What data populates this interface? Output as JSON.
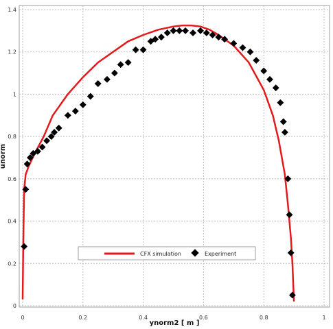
{
  "chart_data": {
    "type": "scatter",
    "xlabel": "ynorm2 [ m ]",
    "ylabel": "unorm",
    "xlim": [
      0,
      1
    ],
    "ylim": [
      0,
      1.4
    ],
    "x_ticks": [
      "0",
      "0.2",
      "0.4",
      "0.6",
      "0.8",
      "1"
    ],
    "y_ticks": [
      "0",
      "0.2",
      "0.4",
      "0.6",
      "0.8",
      "1",
      "1.2",
      "1.4"
    ],
    "grid": true,
    "legend_position": "bottom-center",
    "colors": {
      "simulation": "#e31a1c",
      "experiment": "#000000",
      "grid": "#bdbdbd"
    },
    "series": [
      {
        "name": "CFX simulation",
        "kind": "line",
        "x": [
          0.0,
          0.002,
          0.005,
          0.01,
          0.02,
          0.04,
          0.07,
          0.1,
          0.15,
          0.2,
          0.25,
          0.3,
          0.35,
          0.4,
          0.45,
          0.5,
          0.53,
          0.56,
          0.59,
          0.62,
          0.65,
          0.7,
          0.75,
          0.8,
          0.83,
          0.85,
          0.87,
          0.88,
          0.89,
          0.895,
          0.9
        ],
        "y": [
          0.03,
          0.3,
          0.55,
          0.62,
          0.66,
          0.72,
          0.8,
          0.9,
          1.0,
          1.08,
          1.15,
          1.2,
          1.25,
          1.28,
          1.305,
          1.32,
          1.325,
          1.325,
          1.32,
          1.305,
          1.28,
          1.23,
          1.15,
          1.02,
          0.9,
          0.78,
          0.62,
          0.48,
          0.32,
          0.2,
          0.02
        ]
      },
      {
        "name": "Experiment",
        "kind": "marker",
        "x": [
          0.005,
          0.01,
          0.015,
          0.025,
          0.035,
          0.05,
          0.065,
          0.08,
          0.095,
          0.105,
          0.12,
          0.15,
          0.175,
          0.2,
          0.225,
          0.25,
          0.28,
          0.305,
          0.325,
          0.35,
          0.375,
          0.4,
          0.425,
          0.44,
          0.46,
          0.48,
          0.5,
          0.52,
          0.54,
          0.565,
          0.59,
          0.61,
          0.63,
          0.65,
          0.67,
          0.7,
          0.73,
          0.755,
          0.775,
          0.8,
          0.82,
          0.84,
          0.855,
          0.865,
          0.87,
          0.88,
          0.885,
          0.89,
          0.895
        ],
        "y": [
          0.28,
          0.55,
          0.67,
          0.7,
          0.72,
          0.73,
          0.75,
          0.78,
          0.8,
          0.82,
          0.84,
          0.9,
          0.92,
          0.95,
          0.99,
          1.05,
          1.07,
          1.1,
          1.14,
          1.15,
          1.21,
          1.21,
          1.25,
          1.26,
          1.27,
          1.29,
          1.3,
          1.3,
          1.3,
          1.29,
          1.3,
          1.29,
          1.28,
          1.27,
          1.26,
          1.24,
          1.22,
          1.2,
          1.16,
          1.11,
          1.07,
          1.03,
          0.96,
          0.87,
          0.82,
          0.6,
          0.43,
          0.25,
          0.05
        ]
      }
    ]
  }
}
